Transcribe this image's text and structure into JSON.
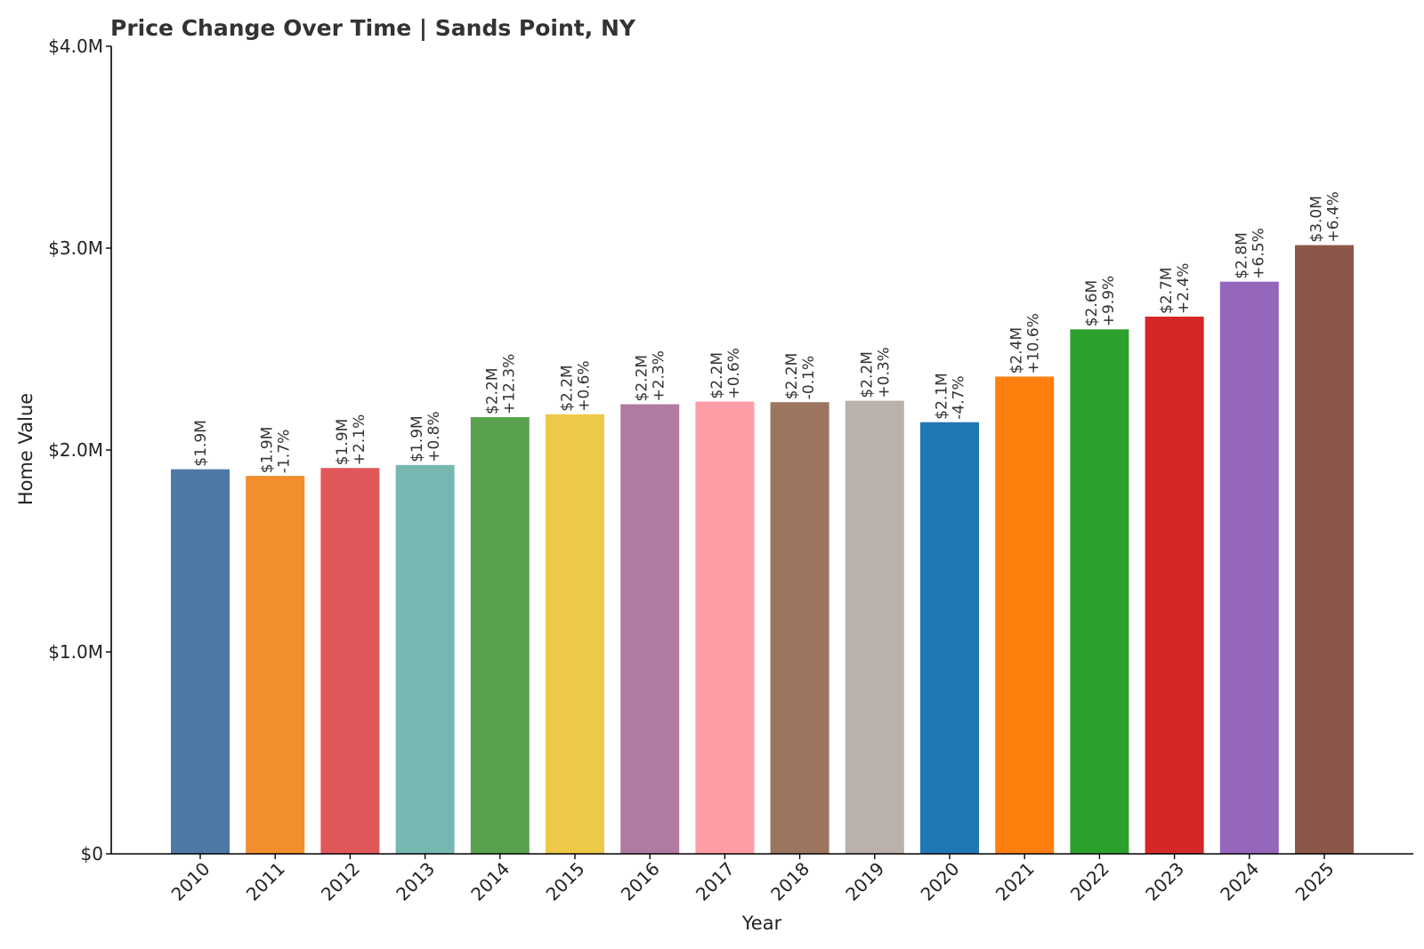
{
  "chart_data": {
    "type": "bar",
    "title": "Price Change Over Time | Sands Point, NY",
    "xlabel": "Year",
    "ylabel": "Home Value",
    "ylim": [
      0,
      4000000
    ],
    "yticks": [
      {
        "value": 0,
        "label": "$0"
      },
      {
        "value": 1000000,
        "label": "$1.0M"
      },
      {
        "value": 2000000,
        "label": "$2.0M"
      },
      {
        "value": 3000000,
        "label": "$3.0M"
      },
      {
        "value": 4000000,
        "label": "$4.0M"
      }
    ],
    "grid": false,
    "categories": [
      "2010",
      "2011",
      "2012",
      "2013",
      "2014",
      "2015",
      "2016",
      "2017",
      "2018",
      "2019",
      "2020",
      "2021",
      "2022",
      "2023",
      "2024",
      "2025"
    ],
    "values": [
      1905000,
      1872000,
      1911000,
      1926000,
      2163000,
      2177000,
      2227000,
      2240000,
      2237000,
      2244000,
      2138000,
      2364000,
      2598000,
      2661000,
      2834000,
      3015000
    ],
    "value_labels": [
      "$1.9M",
      "$1.9M",
      "$1.9M",
      "$1.9M",
      "$2.2M",
      "$2.2M",
      "$2.2M",
      "$2.2M",
      "$2.2M",
      "$2.2M",
      "$2.1M",
      "$2.4M",
      "$2.6M",
      "$2.7M",
      "$2.8M",
      "$3.0M"
    ],
    "change_labels": [
      "",
      "-1.7%",
      "+2.1%",
      "+0.8%",
      "+12.3%",
      "+0.6%",
      "+2.3%",
      "+0.6%",
      "-0.1%",
      "+0.3%",
      "-4.7%",
      "+10.6%",
      "+9.9%",
      "+2.4%",
      "+6.5%",
      "+6.4%"
    ],
    "colors": [
      "#4e79a7",
      "#f28e2b",
      "#e15759",
      "#76b7b2",
      "#59a14f",
      "#edc948",
      "#b07aa1",
      "#ff9da7",
      "#9c755f",
      "#bab0ac",
      "#1f77b4",
      "#ff7f0e",
      "#2ca02c",
      "#d62728",
      "#9467bd",
      "#8c564b"
    ]
  }
}
